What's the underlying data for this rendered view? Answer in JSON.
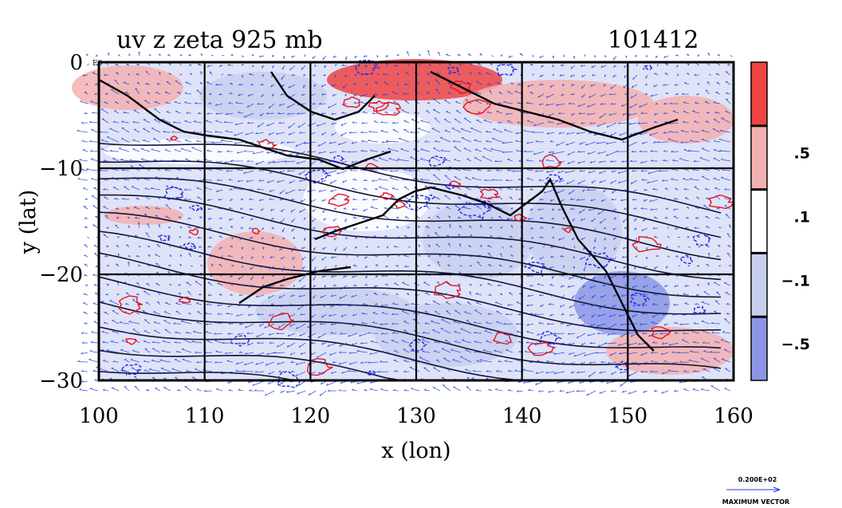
{
  "chart_data": {
    "type": "heatmap",
    "title": "uv z zeta 925 mb",
    "timestamp": "101412",
    "xlabel": "x (lon)",
    "ylabel": "y (lat)",
    "xlim": [
      100,
      160
    ],
    "ylim": [
      -30,
      0
    ],
    "x_ticks": [
      "100",
      "110",
      "120",
      "130",
      "140",
      "150",
      "160"
    ],
    "y_ticks": [
      "0",
      "−10",
      "−20",
      "−30"
    ],
    "y_tick_values": [
      0,
      -10,
      -20,
      -30
    ],
    "x_tick_values": [
      100,
      110,
      120,
      130,
      140,
      150,
      160
    ],
    "grid": true,
    "colorbar": {
      "levels": [
        {
          "color": "#ee4444",
          "label": ""
        },
        {
          "color": "#f4b0b0",
          "label": ".5"
        },
        {
          "color": "#ffffff",
          "label": ".1"
        },
        {
          "color": "#c8d0f0",
          "label": "−.1"
        },
        {
          "color": "#8c96e6",
          "label": "−.5"
        }
      ]
    },
    "vector_legend": {
      "value": "0.200E+02",
      "label": "MAXIMUM VECTOR"
    },
    "colors": {
      "positive_contour": "#e8141e",
      "negative_contour": "#1e28e6",
      "height_contour": "#141432",
      "vectors": "#1e3cdc"
    }
  }
}
